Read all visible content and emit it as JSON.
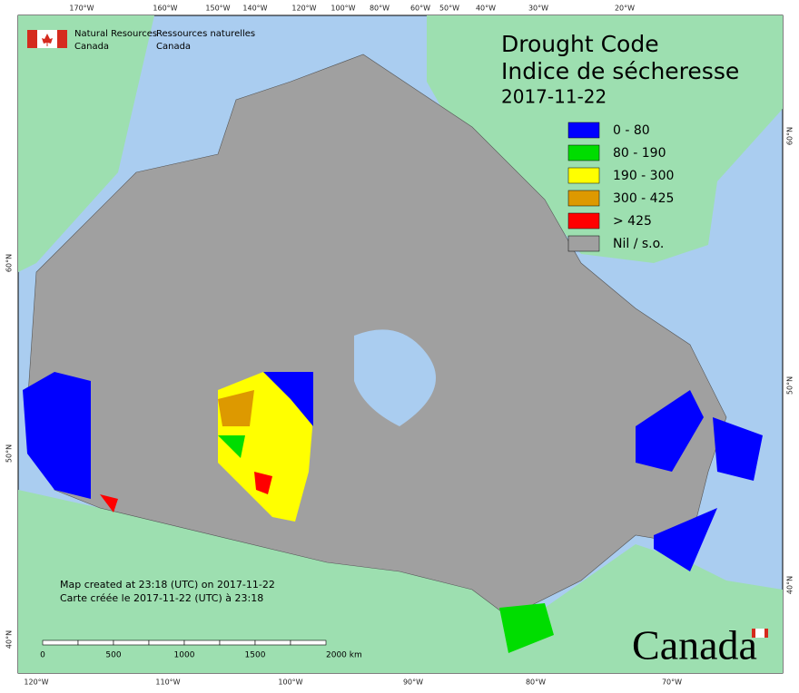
{
  "header": {
    "agency_en": [
      "Natural Resources",
      "Canada"
    ],
    "agency_fr": [
      "Ressources naturelles",
      "Canada"
    ]
  },
  "title": {
    "lines": [
      "Drought Code",
      "Indice de sécheresse"
    ],
    "date": "2017-11-22"
  },
  "legend": [
    {
      "label": "0 - 80",
      "color": "#0000ff"
    },
    {
      "label": "80 - 190",
      "color": "#00dd00"
    },
    {
      "label": "190 - 300",
      "color": "#ffff00"
    },
    {
      "label": "300 - 425",
      "color": "#dd9900"
    },
    {
      "label": "> 425",
      "color": "#ff0000"
    },
    {
      "label": "Nil / s.o.",
      "color": "#a0a0a0"
    }
  ],
  "graticule": {
    "top": [
      "170°W",
      "160°W",
      "150°W",
      "140°W",
      "120°W",
      "100°W",
      "80°W",
      "60°W",
      "50°W",
      "40°W",
      "30°W",
      "20°W"
    ],
    "bottom": [
      "120°W",
      "110°W",
      "100°W",
      "90°W",
      "80°W",
      "70°W"
    ],
    "left": [
      "60°N",
      "50°N",
      "40°N"
    ],
    "right": [
      "60°N",
      "50°N",
      "40°N"
    ]
  },
  "footer": {
    "created": [
      "Map created at 23:18 (UTC) on 2017-11-22",
      "Carte créée le 2017-11-22 (UTC) à 23:18"
    ],
    "scale": [
      "0",
      "500",
      "1000",
      "1500",
      "2000  km"
    ],
    "wordmark": "Canada"
  }
}
